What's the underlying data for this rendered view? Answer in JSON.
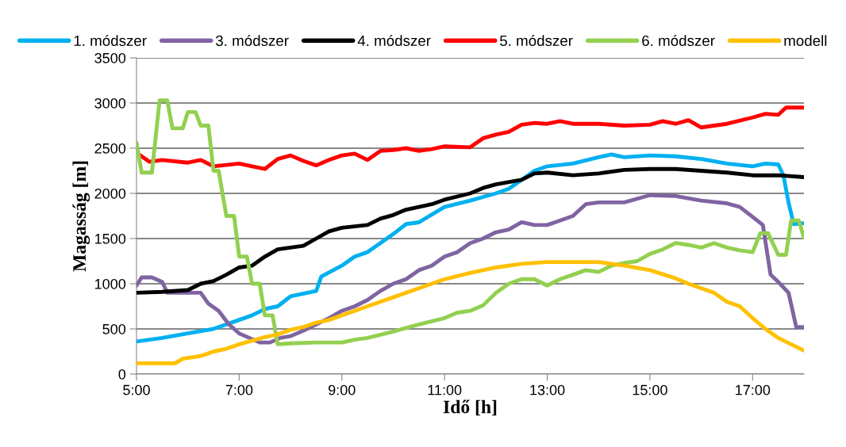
{
  "chart_data": {
    "type": "line",
    "xlabel": "Idő [h]",
    "ylabel": "Magasság [m]",
    "xlim": [
      5,
      18
    ],
    "xticks": [
      {
        "value": 5,
        "label": "5:00"
      },
      {
        "value": 7,
        "label": "7:00"
      },
      {
        "value": 9,
        "label": "9:00"
      },
      {
        "value": 11,
        "label": "11:00"
      },
      {
        "value": 13,
        "label": "13:00"
      },
      {
        "value": 15,
        "label": "15:00"
      },
      {
        "value": 17,
        "label": "17:00"
      }
    ],
    "ylim": [
      0,
      3500
    ],
    "yticks": [
      0,
      500,
      1000,
      1500,
      2000,
      2500,
      3000,
      3500
    ],
    "grid": "y",
    "legend": "top",
    "marker": "none",
    "line_style": "solid",
    "series": [
      {
        "name": "1. módszer",
        "color": "#00b0f0",
        "x": [
          5.0,
          5.5,
          6.0,
          6.5,
          7.0,
          7.25,
          7.5,
          7.75,
          8.0,
          8.5,
          8.6,
          9.0,
          9.25,
          9.5,
          9.75,
          10.0,
          10.25,
          10.5,
          11.0,
          11.5,
          12.0,
          12.25,
          12.5,
          12.75,
          13.0,
          13.5,
          14.0,
          14.25,
          14.5,
          15.0,
          15.5,
          16.0,
          16.5,
          17.0,
          17.25,
          17.5,
          17.6,
          17.7,
          17.8,
          18.0
        ],
        "values": [
          360,
          400,
          450,
          500,
          600,
          650,
          720,
          750,
          860,
          920,
          1080,
          1200,
          1300,
          1350,
          1450,
          1550,
          1660,
          1680,
          1850,
          1920,
          2000,
          2050,
          2150,
          2250,
          2300,
          2330,
          2400,
          2430,
          2400,
          2420,
          2410,
          2380,
          2330,
          2300,
          2330,
          2320,
          2200,
          1900,
          1660,
          1670
        ]
      },
      {
        "name": "3. módszer",
        "color": "#8064a2",
        "x": [
          5.0,
          5.1,
          5.3,
          5.5,
          5.6,
          6.25,
          6.4,
          6.6,
          6.8,
          7.0,
          7.2,
          7.4,
          7.6,
          7.8,
          8.0,
          8.25,
          8.5,
          8.75,
          9.0,
          9.25,
          9.5,
          9.75,
          10.0,
          10.25,
          10.5,
          10.75,
          11.0,
          11.25,
          11.5,
          11.75,
          12.0,
          12.25,
          12.5,
          12.75,
          13.0,
          13.25,
          13.5,
          13.75,
          14.0,
          14.5,
          15.0,
          15.5,
          16.0,
          16.5,
          16.75,
          17.0,
          17.2,
          17.35,
          17.5,
          17.7,
          17.85,
          18.0
        ],
        "values": [
          980,
          1070,
          1070,
          1020,
          900,
          900,
          780,
          700,
          550,
          450,
          400,
          350,
          350,
          400,
          420,
          480,
          550,
          620,
          700,
          750,
          820,
          920,
          1000,
          1050,
          1150,
          1200,
          1300,
          1350,
          1450,
          1500,
          1570,
          1600,
          1680,
          1650,
          1650,
          1700,
          1750,
          1880,
          1900,
          1900,
          1980,
          1970,
          1920,
          1890,
          1850,
          1740,
          1650,
          1100,
          1020,
          900,
          520,
          520
        ]
      },
      {
        "name": "4. módszer",
        "color": "#000000",
        "x": [
          5.0,
          5.5,
          6.0,
          6.25,
          6.5,
          6.75,
          7.0,
          7.25,
          7.5,
          7.75,
          8.0,
          8.25,
          8.5,
          8.75,
          9.0,
          9.5,
          9.75,
          10.0,
          10.25,
          10.5,
          10.75,
          11.0,
          11.5,
          11.75,
          12.0,
          12.5,
          12.75,
          13.0,
          13.5,
          14.0,
          14.5,
          15.0,
          15.5,
          16.0,
          16.5,
          17.0,
          17.5,
          18.0
        ],
        "values": [
          900,
          910,
          930,
          1000,
          1030,
          1100,
          1180,
          1200,
          1300,
          1380,
          1400,
          1420,
          1500,
          1580,
          1620,
          1650,
          1720,
          1760,
          1820,
          1850,
          1880,
          1930,
          2000,
          2060,
          2100,
          2150,
          2220,
          2230,
          2200,
          2220,
          2260,
          2270,
          2270,
          2250,
          2230,
          2200,
          2200,
          2180
        ]
      },
      {
        "name": "5. módszer",
        "color": "#ff0000",
        "x": [
          5.0,
          5.25,
          5.5,
          6.0,
          6.25,
          6.5,
          7.0,
          7.25,
          7.5,
          7.75,
          8.0,
          8.25,
          8.5,
          8.75,
          9.0,
          9.25,
          9.5,
          9.75,
          10.0,
          10.25,
          10.5,
          10.75,
          11.0,
          11.5,
          11.75,
          12.0,
          12.25,
          12.5,
          12.75,
          13.0,
          13.25,
          13.5,
          14.0,
          14.5,
          15.0,
          15.25,
          15.5,
          15.75,
          16.0,
          16.5,
          17.0,
          17.25,
          17.5,
          17.65,
          18.0
        ],
        "values": [
          2450,
          2350,
          2370,
          2340,
          2370,
          2300,
          2330,
          2300,
          2270,
          2380,
          2420,
          2360,
          2310,
          2370,
          2420,
          2440,
          2370,
          2470,
          2480,
          2500,
          2470,
          2490,
          2520,
          2510,
          2610,
          2650,
          2680,
          2760,
          2780,
          2770,
          2800,
          2770,
          2770,
          2750,
          2760,
          2800,
          2770,
          2810,
          2730,
          2770,
          2840,
          2880,
          2870,
          2950,
          2950
        ]
      },
      {
        "name": "6. módszer",
        "color": "#92d050",
        "x": [
          5.0,
          5.1,
          5.3,
          5.45,
          5.6,
          5.7,
          5.9,
          6.0,
          6.15,
          6.25,
          6.4,
          6.5,
          6.6,
          6.75,
          6.9,
          7.0,
          7.15,
          7.25,
          7.4,
          7.5,
          7.65,
          7.75,
          8.0,
          8.5,
          9.0,
          9.25,
          9.5,
          10.0,
          10.5,
          11.0,
          11.25,
          11.5,
          11.75,
          12.0,
          12.25,
          12.5,
          12.75,
          13.0,
          13.25,
          13.5,
          13.75,
          14.0,
          14.25,
          14.5,
          14.75,
          15.0,
          15.25,
          15.5,
          15.75,
          16.0,
          16.25,
          16.5,
          16.75,
          17.0,
          17.15,
          17.3,
          17.5,
          17.65,
          17.75,
          17.9,
          18.0
        ],
        "values": [
          2560,
          2230,
          2230,
          3030,
          3030,
          2720,
          2720,
          2900,
          2900,
          2750,
          2750,
          2250,
          2250,
          1750,
          1750,
          1300,
          1300,
          1000,
          1000,
          650,
          650,
          330,
          340,
          350,
          350,
          380,
          400,
          470,
          550,
          620,
          680,
          700,
          760,
          900,
          1000,
          1050,
          1050,
          980,
          1050,
          1100,
          1150,
          1130,
          1200,
          1230,
          1250,
          1330,
          1380,
          1450,
          1430,
          1400,
          1450,
          1400,
          1370,
          1350,
          1560,
          1560,
          1320,
          1320,
          1700,
          1700,
          1510
        ]
      },
      {
        "name": "modell",
        "color": "#ffc000",
        "x": [
          5.0,
          5.75,
          5.9,
          6.25,
          6.5,
          6.75,
          7.0,
          7.25,
          7.5,
          7.75,
          8.0,
          8.25,
          8.5,
          8.75,
          9.0,
          9.25,
          9.5,
          9.75,
          10.0,
          10.5,
          11.0,
          11.5,
          12.0,
          12.5,
          13.0,
          14.0,
          14.5,
          15.0,
          15.5,
          15.75,
          16.0,
          16.25,
          16.5,
          16.75,
          17.0,
          17.25,
          17.5,
          17.75,
          18.0
        ],
        "values": [
          120,
          120,
          170,
          200,
          250,
          280,
          330,
          370,
          410,
          440,
          490,
          520,
          570,
          600,
          650,
          700,
          750,
          800,
          850,
          950,
          1050,
          1120,
          1180,
          1220,
          1240,
          1240,
          1200,
          1150,
          1060,
          1000,
          950,
          900,
          800,
          750,
          620,
          500,
          400,
          330,
          260
        ]
      }
    ]
  }
}
